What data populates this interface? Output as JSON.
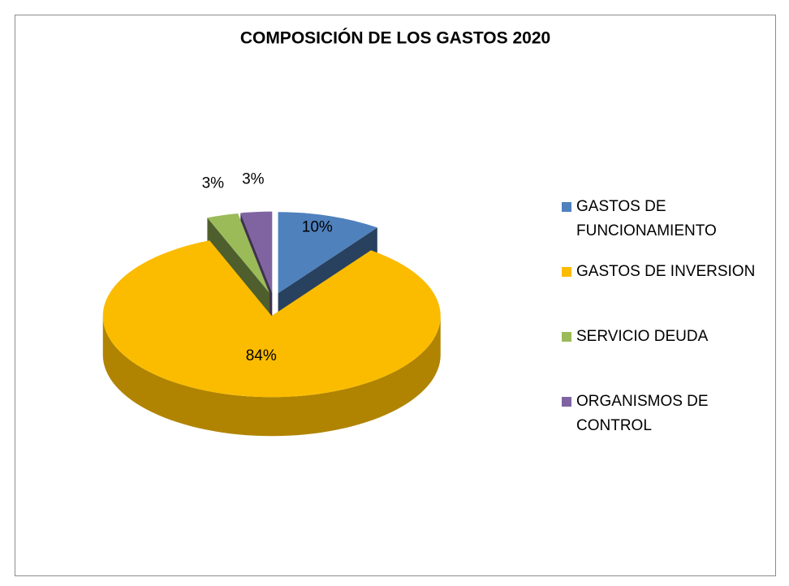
{
  "chart_data": {
    "type": "pie",
    "title": "COMPOSICIÓN DE LOS GASTOS 2020",
    "categories": [
      "GASTOS DE FUNCIONAMIENTO",
      "GASTOS DE INVERSION",
      "SERVICIO DEUDA",
      "ORGANISMOS DE CONTROL"
    ],
    "values": [
      10,
      84,
      3,
      3
    ],
    "value_labels": [
      "10%",
      "84%",
      "3%",
      "3%"
    ],
    "colors": [
      "#4f81bd",
      "#fbbc00",
      "#9bbb59",
      "#8064a2"
    ],
    "legend": "right"
  }
}
